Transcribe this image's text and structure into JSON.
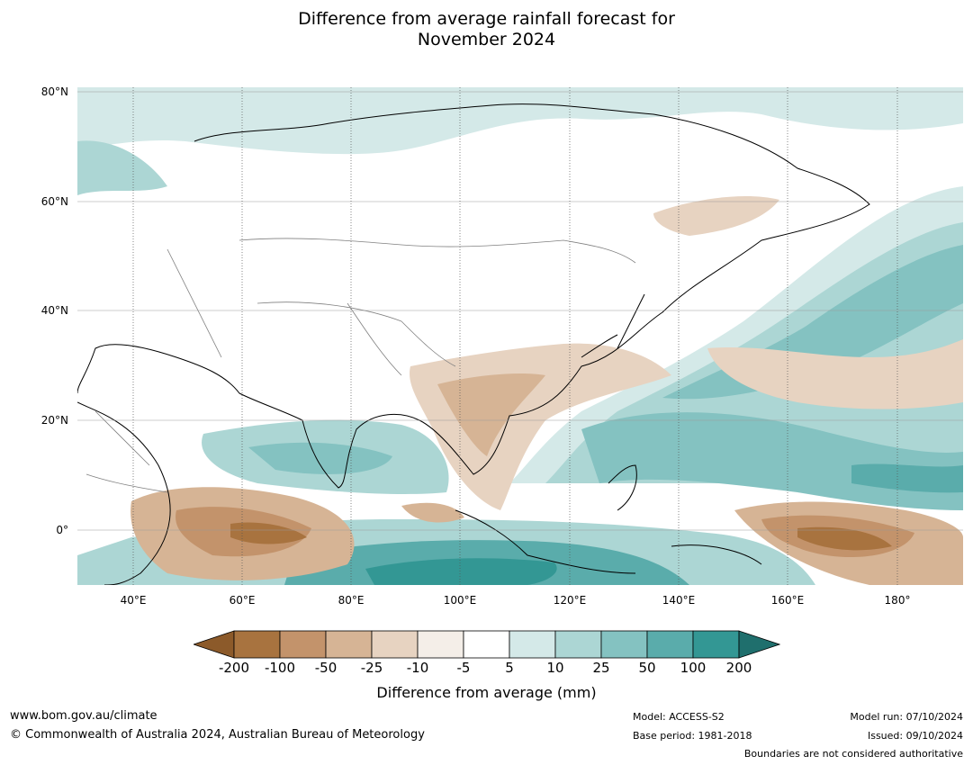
{
  "title": {
    "line1": "Difference from average rainfall forecast for",
    "line2": "November 2024"
  },
  "axes": {
    "lat_labels": [
      "80°N",
      "60°N",
      "40°N",
      "20°N",
      "0°"
    ],
    "lon_labels": [
      "40°E",
      "60°E",
      "80°E",
      "100°E",
      "120°E",
      "140°E",
      "160°E",
      "180°"
    ]
  },
  "colorbar": {
    "title": "Difference from average (mm)",
    "ticks": [
      "-200",
      "-100",
      "-50",
      "-25",
      "-10",
      "-5",
      "5",
      "10",
      "25",
      "50",
      "100",
      "200"
    ],
    "colors": [
      "#8c5a2a",
      "#a8733f",
      "#c3936b",
      "#d6b495",
      "#e7d3c1",
      "#f4eee8",
      "#ffffff",
      "#d4e9e8",
      "#acd6d4",
      "#84c2c1",
      "#5aacab",
      "#339794",
      "#1f6f6d"
    ]
  },
  "footer": {
    "url": "www.bom.gov.au/climate",
    "copyright": "© Commonwealth of Australia 2024, Australian Bureau of Meteorology",
    "model": "Model: ACCESS-S2",
    "base_period": "Base period: 1981-2018",
    "model_run": "Model run: 07/10/2024",
    "issued": "Issued: 09/10/2024",
    "disclaimer": "Boundaries are not considered authoritative"
  }
}
